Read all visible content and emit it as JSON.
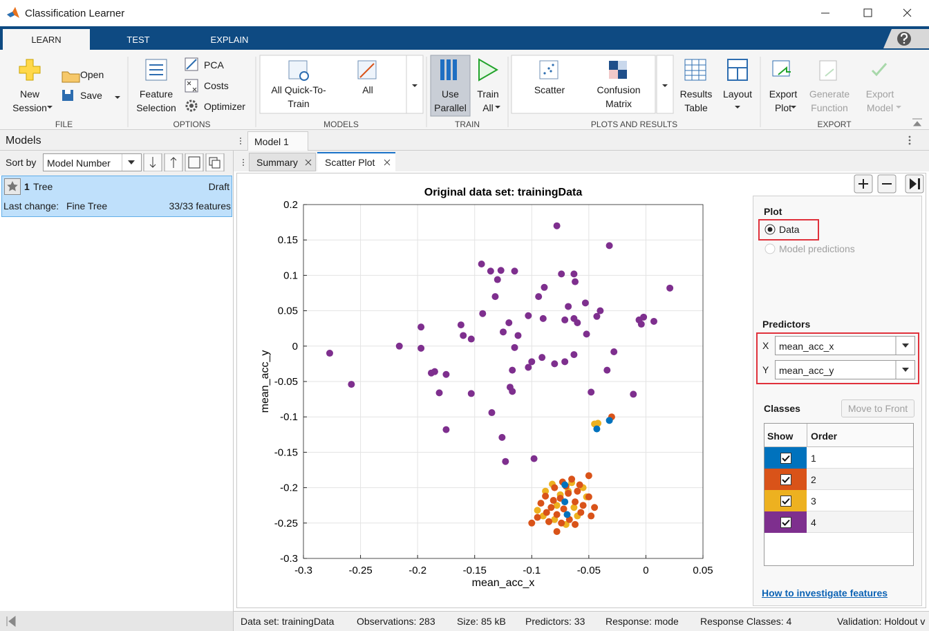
{
  "window": {
    "title": "Classification Learner"
  },
  "tabs": [
    "LEARN",
    "TEST",
    "EXPLAIN"
  ],
  "toolstrip": {
    "file": {
      "label": "FILE",
      "new_session": "New Session",
      "open": "Open",
      "save": "Save"
    },
    "options": {
      "label": "OPTIONS",
      "feature_selection": "Feature Selection",
      "pca": "PCA",
      "costs": "Costs",
      "optimizer": "Optimizer"
    },
    "models": {
      "label": "MODELS",
      "all_quick": "All Quick-To-Train",
      "all": "All"
    },
    "train": {
      "label": "TRAIN",
      "use_parallel": "Use Parallel",
      "train_all": "Train All"
    },
    "plots": {
      "label": "PLOTS AND RESULTS",
      "scatter": "Scatter",
      "confusion_matrix": "Confusion Matrix",
      "results_table": "Results Table",
      "layout": "Layout"
    },
    "export": {
      "label": "EXPORT",
      "export_plot": "Export Plot",
      "generate_function": "Generate Function",
      "export_model": "Export Model"
    }
  },
  "models_panel": {
    "title": "Models",
    "sort_by": "Sort by",
    "sort_field": "Model Number",
    "model": {
      "number": "1",
      "name": "Tree",
      "status": "Draft",
      "last_change_label": "Last change:",
      "last_change": "Fine Tree",
      "features": "33/33 features"
    }
  },
  "document_tab": "Model 1",
  "plot_tabs": [
    "Summary",
    "Scatter Plot"
  ],
  "plot_options": {
    "plot_label": "Plot",
    "data": "Data",
    "model_predictions": "Model predictions",
    "predictors_label": "Predictors",
    "x_label": "X",
    "x_value": "mean_acc_x",
    "y_label": "Y",
    "y_value": "mean_acc_y",
    "classes_label": "Classes",
    "move_to_front": "Move to Front",
    "show_header": "Show",
    "order_header": "Order",
    "help_link": "How to investigate features"
  },
  "status_bar": [
    "Data set: trainingData",
    "Observations: 283",
    "Size: 85 kB",
    "Predictors: 33",
    "Response: mode",
    "Response Classes: 4",
    "Validation: Holdout v"
  ],
  "chart_data": {
    "type": "scatter",
    "title": "Original data set: trainingData",
    "x_label": "mean_acc_x",
    "y_label": "mean_acc_y",
    "xlim": [
      -0.3,
      0.05
    ],
    "ylim": [
      -0.3,
      0.2
    ],
    "xticks": [
      -0.3,
      -0.25,
      -0.2,
      -0.15,
      -0.1,
      -0.05,
      0,
      0.05
    ],
    "yticks": [
      -0.3,
      -0.25,
      -0.2,
      -0.15,
      -0.1,
      -0.05,
      0,
      0.05,
      0.1,
      0.15,
      0.2
    ],
    "grid": true,
    "series": [
      {
        "name": "1",
        "color": "#0072bd",
        "x": [
          -0.032,
          -0.043,
          -0.071,
          -0.071,
          -0.069
        ],
        "y": [
          -0.105,
          -0.117,
          -0.196,
          -0.22,
          -0.238
        ]
      },
      {
        "name": "2",
        "color": "#d95319",
        "x": [
          -0.03,
          -0.078,
          -0.085,
          -0.1,
          -0.092,
          -0.088,
          -0.08,
          -0.073,
          -0.065,
          -0.058,
          -0.05,
          -0.05,
          -0.045,
          -0.048,
          -0.057,
          -0.062,
          -0.067,
          -0.072,
          -0.078,
          -0.083,
          -0.087,
          -0.095,
          -0.075,
          -0.068,
          -0.06,
          -0.055,
          -0.081,
          -0.07,
          -0.062,
          -0.074
        ],
        "y": [
          -0.1,
          -0.262,
          -0.248,
          -0.25,
          -0.222,
          -0.212,
          -0.2,
          -0.192,
          -0.188,
          -0.196,
          -0.183,
          -0.213,
          -0.228,
          -0.24,
          -0.235,
          -0.22,
          -0.245,
          -0.23,
          -0.238,
          -0.228,
          -0.235,
          -0.242,
          -0.215,
          -0.208,
          -0.205,
          -0.225,
          -0.218,
          -0.198,
          -0.252,
          -0.25
        ]
      },
      {
        "name": "3",
        "color": "#edb120",
        "x": [
          -0.045,
          -0.042,
          -0.082,
          -0.088,
          -0.065,
          -0.055,
          -0.078,
          -0.095,
          -0.06,
          -0.085,
          -0.07,
          -0.052,
          -0.075,
          -0.09,
          -0.063,
          -0.08,
          -0.068
        ],
        "y": [
          -0.11,
          -0.109,
          -0.195,
          -0.205,
          -0.193,
          -0.2,
          -0.225,
          -0.232,
          -0.24,
          -0.248,
          -0.252,
          -0.213,
          -0.21,
          -0.24,
          -0.228,
          -0.245,
          -0.205
        ]
      },
      {
        "name": "4",
        "color": "#7e2f8e",
        "x": [
          -0.078,
          -0.032,
          0.021,
          -0.144,
          -0.136,
          -0.127,
          -0.115,
          -0.13,
          -0.132,
          -0.089,
          -0.074,
          -0.063,
          -0.062,
          -0.094,
          -0.053,
          -0.068,
          -0.04,
          -0.143,
          -0.103,
          -0.12,
          -0.09,
          -0.071,
          -0.063,
          -0.06,
          -0.043,
          -0.006,
          -0.002,
          0.007,
          -0.004,
          -0.197,
          -0.162,
          -0.16,
          -0.153,
          -0.125,
          -0.112,
          -0.115,
          -0.052,
          -0.216,
          -0.197,
          -0.277,
          -0.258,
          -0.188,
          -0.185,
          -0.175,
          -0.181,
          -0.153,
          -0.117,
          -0.1,
          -0.091,
          -0.08,
          -0.071,
          -0.063,
          -0.103,
          -0.028,
          -0.034,
          -0.119,
          -0.117,
          -0.048,
          -0.011,
          -0.135,
          -0.175,
          -0.126,
          -0.123,
          -0.098
        ],
        "y": [
          0.17,
          0.142,
          0.082,
          0.116,
          0.106,
          0.107,
          0.106,
          0.094,
          0.07,
          0.083,
          0.102,
          0.102,
          0.091,
          0.07,
          0.061,
          0.056,
          0.05,
          0.046,
          0.043,
          0.033,
          0.039,
          0.037,
          0.039,
          0.033,
          0.042,
          0.037,
          0.041,
          0.035,
          0.031,
          0.027,
          0.03,
          0.015,
          0.01,
          0.02,
          0.015,
          -0.002,
          0.017,
          0,
          -0.003,
          -0.01,
          -0.054,
          -0.038,
          -0.036,
          -0.04,
          -0.066,
          -0.067,
          -0.034,
          -0.022,
          -0.016,
          -0.025,
          -0.022,
          -0.012,
          -0.03,
          -0.008,
          -0.034,
          -0.058,
          -0.064,
          -0.065,
          -0.068,
          -0.094,
          -0.118,
          -0.129,
          -0.163,
          -0.159
        ]
      }
    ]
  }
}
